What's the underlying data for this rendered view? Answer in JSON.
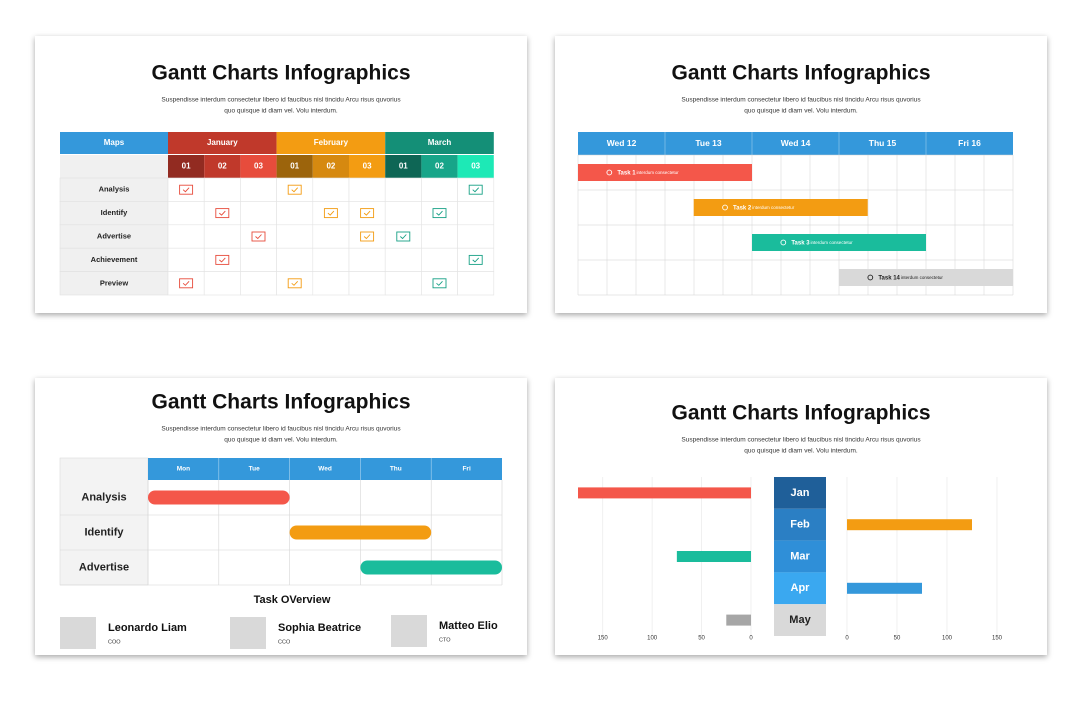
{
  "slides": [
    {
      "title": "Gantt Charts Infographics",
      "subtitle_lines": [
        "Suspendisse interdum consectetur libero id faucibus nisl tincidu Arcu risus quvorius",
        "quo quisque id diam vel. Volu interdum."
      ],
      "table": {
        "corner": "Maps",
        "corner_color": "#3498db",
        "months": [
          {
            "name": "January",
            "color": "#c0392b",
            "check_color": "#e74c3c",
            "days": [
              "01",
              "02",
              "03"
            ],
            "day_colors": [
              "#922b21",
              "#c0392b",
              "#e74c3c"
            ]
          },
          {
            "name": "February",
            "color": "#f39c12",
            "check_color": "#f39c12",
            "days": [
              "01",
              "02",
              "03"
            ],
            "day_colors": [
              "#9c640c",
              "#d68910",
              "#f39c12"
            ]
          },
          {
            "name": "March",
            "color": "#148f77",
            "check_color": "#16a085",
            "days": [
              "01",
              "02",
              "03"
            ],
            "day_colors": [
              "#0e6655",
              "#17a589",
              "#1de9b6"
            ]
          }
        ],
        "rows": [
          {
            "label": "Analysis",
            "checks": [
              true,
              false,
              false,
              true,
              false,
              false,
              false,
              false,
              true
            ]
          },
          {
            "label": "Identify",
            "checks": [
              false,
              true,
              false,
              false,
              true,
              true,
              false,
              true,
              false
            ]
          },
          {
            "label": "Advertise",
            "checks": [
              false,
              false,
              true,
              false,
              false,
              true,
              true,
              false,
              false
            ]
          },
          {
            "label": "Achievement",
            "checks": [
              false,
              true,
              false,
              false,
              false,
              false,
              false,
              false,
              true
            ]
          },
          {
            "label": "Preview",
            "checks": [
              true,
              false,
              false,
              true,
              false,
              false,
              false,
              true,
              false
            ]
          }
        ]
      }
    },
    {
      "title": "Gantt Charts Infographics",
      "subtitle_lines": [
        "Suspendisse interdum consectetur libero id faucibus nisl tincidu Arcu risus quvorius",
        "quo quisque id diam vel. Volu interdum."
      ],
      "gantt": {
        "header_color": "#3498db",
        "days": [
          "Wed 12",
          "Tue 13",
          "Wed 14",
          "Thu 15",
          "Fri 16"
        ],
        "tasks": [
          {
            "name": "Task 1",
            "note": "interdum consectetur",
            "start": 0,
            "end": 2,
            "color": "#f4574a",
            "text_color": "#ffffff"
          },
          {
            "name": "Task 2",
            "note": "interdum consectetur",
            "start": 1.33,
            "end": 3.33,
            "color": "#f39c12",
            "text_color": "#ffffff"
          },
          {
            "name": "Task 3",
            "note": "interdum consectetur",
            "start": 2,
            "end": 4,
            "color": "#1abc9c",
            "text_color": "#ffffff"
          },
          {
            "name": "Task 14",
            "note": "interdum consectetur",
            "start": 3,
            "end": 5,
            "color": "#d9d9d9",
            "text_color": "#222222"
          }
        ]
      }
    },
    {
      "title": "Gantt Charts Infographics",
      "subtitle_lines": [
        "Suspendisse interdum consectetur libero id faucibus nisl tincidu Arcu risus quvorius",
        "quo quisque id diam vel. Volu interdum."
      ],
      "schedule": {
        "header_color": "#3498db",
        "days": [
          "Mon",
          "Tue",
          "Wed",
          "Thu",
          "Fri"
        ],
        "rows": [
          {
            "label": "Analysis",
            "start": 0,
            "end": 2,
            "color": "#f4574a"
          },
          {
            "label": "Identify",
            "start": 2,
            "end": 4,
            "color": "#f39c12"
          },
          {
            "label": "Advertise",
            "start": 3,
            "end": 5,
            "color": "#1abc9c"
          }
        ]
      },
      "overview": {
        "title": "Task OVerview",
        "people": [
          {
            "name": "Leonardo Liam",
            "role": "COO"
          },
          {
            "name": "Sophia Beatrice",
            "role": "CCO"
          },
          {
            "name": "Matteo Elio",
            "role": "CTO"
          }
        ]
      }
    },
    {
      "title": "Gantt Charts Infographics",
      "subtitle_lines": [
        "Suspendisse interdum consectetur libero id faucibus nisl tincidu Arcu risus quvorius",
        "quo quisque id diam vel. Volu interdum."
      ],
      "chart": {
        "type": "bar",
        "categories": [
          "Jan",
          "Feb",
          "Mar",
          "Apr",
          "May"
        ],
        "label_colors": [
          "#1f5f99",
          "#2b7fc4",
          "#2f8fd8",
          "#3aa8f0",
          "#d9d9d9"
        ],
        "label_text_colors": [
          "#ffffff",
          "#ffffff",
          "#ffffff",
          "#ffffff",
          "#222222"
        ],
        "colors": [
          "#f4574a",
          "#f39c12",
          "#1abc9c",
          "#3498db",
          "#a6a6a6"
        ],
        "left_values": [
          175,
          null,
          75,
          null,
          25
        ],
        "right_values": [
          null,
          125,
          null,
          75,
          null
        ],
        "xlim": [
          0,
          175
        ],
        "xticks": [
          0,
          50,
          100,
          150
        ],
        "grid": true
      }
    }
  ]
}
